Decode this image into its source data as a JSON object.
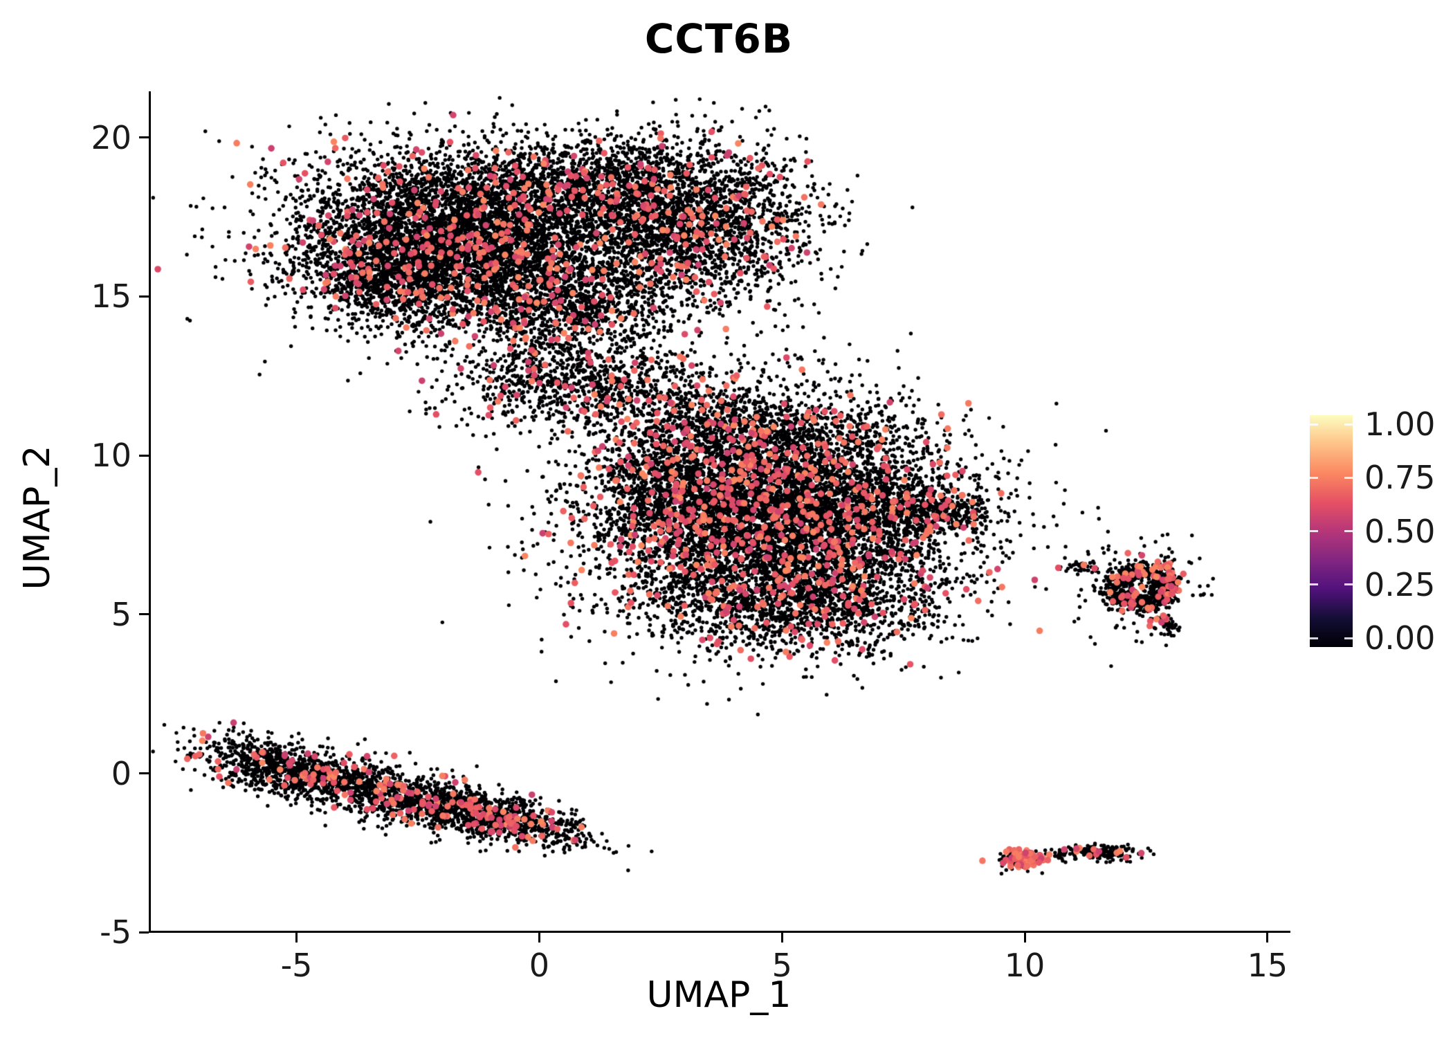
{
  "title": "CCT6B",
  "axes": {
    "x": {
      "label": "UMAP_1",
      "ticks": [
        -5,
        0,
        5,
        10,
        15
      ]
    },
    "y": {
      "label": "UMAP_2",
      "ticks": [
        -5,
        0,
        5,
        10,
        15,
        20
      ]
    }
  },
  "legend": {
    "tick_labels": [
      "1.00",
      "0.75",
      "0.50",
      "0.25",
      "0.00"
    ],
    "tick_values": [
      1.0,
      0.75,
      0.5,
      0.25,
      0.0
    ],
    "colormap_stops": [
      "#000004",
      "#140E36",
      "#51127C",
      "#822681",
      "#B63679",
      "#E65164",
      "#FB8861",
      "#FEC287",
      "#FCFDBF"
    ]
  },
  "chart_data": {
    "type": "scatter",
    "title": "CCT6B",
    "xlabel": "UMAP_1",
    "ylabel": "UMAP_2",
    "xlim": [
      -8.0,
      15.4
    ],
    "ylim": [
      -4.95,
      21.45
    ],
    "legend_title": "",
    "colorbar": {
      "min": 0.0,
      "max": 1.0,
      "colormap": "magma"
    },
    "point_color_zero": "#000004",
    "expr_value_range": [
      0.55,
      0.75
    ],
    "seed": 12345,
    "clusters": [
      {
        "name": "top-blob-core",
        "cx": -1.5,
        "cy": 16.9,
        "sx": 1.8,
        "sy": 1.35,
        "n": 6000,
        "expr": 0.055
      },
      {
        "name": "top-blob-left-bulge",
        "cx": -3.1,
        "cy": 15.5,
        "sx": 0.75,
        "sy": 0.7,
        "n": 650,
        "expr": 0.05
      },
      {
        "name": "top-blob-right-lobe",
        "cx": 3.1,
        "cy": 17.3,
        "sx": 1.25,
        "sy": 1.3,
        "n": 2400,
        "expr": 0.05
      },
      {
        "name": "top-blob-upper-middle",
        "cx": 1.2,
        "cy": 18.7,
        "sx": 1.2,
        "sy": 0.65,
        "n": 750,
        "expr": 0.05
      },
      {
        "name": "top-blob-lower-bridge",
        "cx": 0.6,
        "cy": 14.6,
        "sx": 1.1,
        "sy": 0.75,
        "n": 800,
        "expr": 0.05
      },
      {
        "name": "funnel",
        "cx": 0.2,
        "cy": 12.4,
        "sx": 1.05,
        "sy": 0.7,
        "n": 620,
        "expr": 0.06
      },
      {
        "name": "funnel-right",
        "cx": 1.9,
        "cy": 12.1,
        "sx": 1.0,
        "sy": 0.65,
        "n": 340,
        "expr": 0.05
      },
      {
        "name": "sparse-trail",
        "cx": 3.1,
        "cy": 11.4,
        "sx": 0.8,
        "sy": 0.5,
        "n": 120,
        "expr": 0.04
      },
      {
        "name": "middle-blob-core",
        "cx": 4.9,
        "cy": 8.1,
        "sx": 1.85,
        "sy": 1.75,
        "n": 7500,
        "expr": 0.075
      },
      {
        "name": "middle-blob-left",
        "cx": 2.9,
        "cy": 8.9,
        "sx": 0.8,
        "sy": 1.1,
        "n": 700,
        "expr": 0.07
      },
      {
        "name": "middle-blob-right-arm",
        "cx": 7.6,
        "cy": 8.3,
        "sx": 0.8,
        "sy": 0.45,
        "n": 420,
        "expr": 0.06
      },
      {
        "name": "middle-blob-right-tip",
        "cx": 8.6,
        "cy": 8.2,
        "sx": 0.35,
        "sy": 0.2,
        "n": 90,
        "expr": 0.05
      },
      {
        "name": "middle-blob-bottom",
        "cx": 5.2,
        "cy": 5.2,
        "sx": 1.5,
        "sy": 0.68,
        "n": 900,
        "expr": 0.07
      },
      {
        "name": "middle-blob-top",
        "cx": 4.2,
        "cy": 10.7,
        "sx": 1.3,
        "sy": 0.55,
        "n": 450,
        "expr": 0.06
      },
      {
        "name": "stray-below-middle",
        "cx": 6.7,
        "cy": 3.8,
        "sx": 0.12,
        "sy": 0.1,
        "n": 10,
        "expr": 0
      },
      {
        "name": "stripe-left",
        "cx": -5.3,
        "cy": 0.15,
        "sx": 0.9,
        "sy": 0.38,
        "n": 780,
        "rot": -19,
        "expr": 0.06
      },
      {
        "name": "stripe-mid",
        "cx": -3.0,
        "cy": -0.65,
        "sx": 1.3,
        "sy": 0.42,
        "n": 1050,
        "rot": -19,
        "expr": 0.07
      },
      {
        "name": "stripe-right",
        "cx": -0.8,
        "cy": -1.4,
        "sx": 0.95,
        "sy": 0.35,
        "n": 820,
        "rot": -19,
        "expr": 0.07
      },
      {
        "name": "ring-cluster",
        "shape": "ring",
        "cx": 12.35,
        "cy": 5.85,
        "r0": 0.55,
        "rw": 0.16,
        "n": 620,
        "expr": 0.06
      },
      {
        "name": "ring-halo",
        "cx": 12.35,
        "cy": 5.9,
        "sx": 0.7,
        "sy": 0.7,
        "n": 170,
        "expr": 0.05
      },
      {
        "name": "ring-left-satellite",
        "cx": 11.15,
        "cy": 6.5,
        "sx": 0.18,
        "sy": 0.1,
        "n": 35,
        "expr": 0.05
      },
      {
        "name": "ring-right-edge",
        "cx": 13.0,
        "cy": 6.15,
        "sx": 0.12,
        "sy": 0.3,
        "n": 60,
        "expr": 0.3
      },
      {
        "name": "ring-bottom-tip",
        "cx": 12.95,
        "cy": 4.65,
        "sx": 0.14,
        "sy": 0.22,
        "n": 45,
        "expr": 0.18
      },
      {
        "name": "bottom-right-blob-a",
        "cx": 10.0,
        "cy": -2.7,
        "sx": 0.22,
        "sy": 0.16,
        "n": 170,
        "expr": 0.35
      },
      {
        "name": "bottom-right-blob-b",
        "cx": 11.55,
        "cy": -2.5,
        "sx": 0.45,
        "sy": 0.11,
        "n": 190,
        "expr": 0.06
      },
      {
        "name": "bottom-right-connector",
        "cx": 10.72,
        "cy": -2.6,
        "sx": 0.07,
        "sy": 0.05,
        "n": 12,
        "expr": 0
      }
    ]
  }
}
